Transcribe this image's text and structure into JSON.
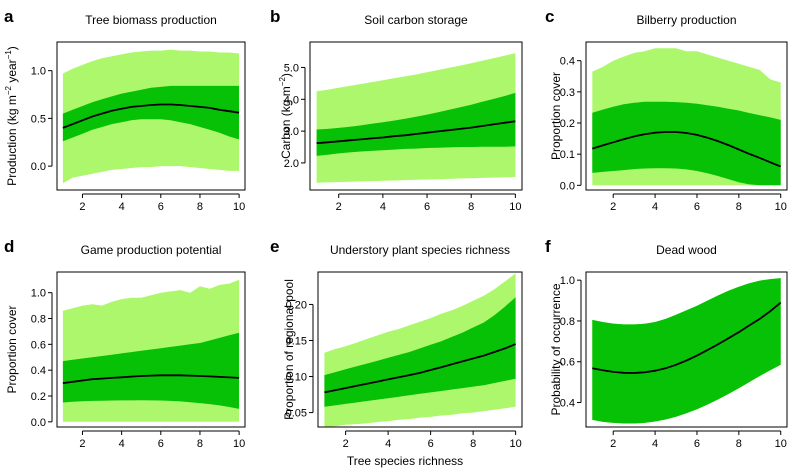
{
  "figure": {
    "shared_xlabel": "Tree species richness",
    "colors": {
      "outer_band": "#adf76c",
      "inner_band": "#06c106",
      "line": "#000000"
    }
  },
  "chart_data": [
    {
      "letter": "a",
      "type": "line",
      "title": "Tree biomass production",
      "ylabel": {
        "main": "Production (kg m",
        "sup1": "−2",
        "mid": " year",
        "sup2": "−1",
        "end": ")"
      },
      "xlim": [
        0.7,
        10.3
      ],
      "ylim": [
        -0.25,
        1.3
      ],
      "xticks": [
        2,
        4,
        6,
        8,
        10
      ],
      "yticks": [
        0.0,
        0.5,
        1.0
      ],
      "ytick_labels": [
        "0.0",
        "0.5",
        "1.0"
      ],
      "x": [
        1,
        1.5,
        2,
        2.5,
        3,
        3.5,
        4,
        4.5,
        5,
        5.5,
        6,
        6.5,
        7,
        7.5,
        8,
        8.5,
        9,
        9.5,
        10
      ],
      "mean": [
        0.4,
        0.44,
        0.48,
        0.52,
        0.55,
        0.58,
        0.6,
        0.62,
        0.63,
        0.64,
        0.645,
        0.645,
        0.64,
        0.63,
        0.62,
        0.61,
        0.59,
        0.575,
        0.56
      ],
      "inner_lower": [
        0.26,
        0.3,
        0.34,
        0.38,
        0.41,
        0.44,
        0.46,
        0.48,
        0.49,
        0.49,
        0.49,
        0.48,
        0.46,
        0.44,
        0.41,
        0.38,
        0.35,
        0.31,
        0.28
      ],
      "inner_upper": [
        0.55,
        0.59,
        0.63,
        0.67,
        0.7,
        0.73,
        0.76,
        0.78,
        0.8,
        0.82,
        0.83,
        0.84,
        0.84,
        0.84,
        0.84,
        0.84,
        0.84,
        0.84,
        0.84
      ],
      "outer_lower": [
        -0.18,
        -0.12,
        -0.1,
        -0.08,
        -0.06,
        -0.04,
        -0.03,
        -0.02,
        -0.01,
        -0.01,
        0.0,
        0.0,
        0.0,
        -0.01,
        -0.02,
        -0.03,
        -0.04,
        -0.05,
        -0.05
      ],
      "outer_upper": [
        0.97,
        1.02,
        1.06,
        1.1,
        1.13,
        1.15,
        1.17,
        1.19,
        1.2,
        1.21,
        1.21,
        1.22,
        1.21,
        1.21,
        1.2,
        1.2,
        1.19,
        1.19,
        1.18
      ]
    },
    {
      "letter": "b",
      "type": "line",
      "title": "Soil carbon storage",
      "ylabel": {
        "main": "Carbon (kg m",
        "sup1": "−2",
        "mid": "",
        "sup2": "",
        "end": ")"
      },
      "xlim": [
        0.7,
        10.3
      ],
      "ylim": [
        1.15,
        5.8
      ],
      "xticks": [
        2,
        4,
        6,
        8,
        10
      ],
      "yticks": [
        2.0,
        3.0,
        4.0,
        5.0
      ],
      "ytick_labels": [
        "2.0",
        "3.0",
        "4.0",
        "5.0"
      ],
      "x": [
        1,
        1.5,
        2,
        2.5,
        3,
        3.5,
        4,
        4.5,
        5,
        5.5,
        6,
        6.5,
        7,
        7.5,
        8,
        8.5,
        9,
        9.5,
        10
      ],
      "mean": [
        2.62,
        2.65,
        2.68,
        2.71,
        2.74,
        2.77,
        2.8,
        2.84,
        2.87,
        2.91,
        2.95,
        2.99,
        3.03,
        3.07,
        3.11,
        3.16,
        3.21,
        3.26,
        3.31
      ],
      "inner_lower": [
        2.22,
        2.26,
        2.3,
        2.33,
        2.36,
        2.38,
        2.4,
        2.42,
        2.44,
        2.45,
        2.47,
        2.48,
        2.49,
        2.5,
        2.5,
        2.51,
        2.51,
        2.51,
        2.52
      ],
      "inner_upper": [
        3.05,
        3.07,
        3.1,
        3.14,
        3.18,
        3.23,
        3.28,
        3.33,
        3.39,
        3.45,
        3.52,
        3.59,
        3.67,
        3.75,
        3.83,
        3.92,
        4.01,
        4.1,
        4.2
      ],
      "outer_lower": [
        1.38,
        1.39,
        1.4,
        1.41,
        1.42,
        1.43,
        1.44,
        1.45,
        1.46,
        1.47,
        1.48,
        1.49,
        1.5,
        1.51,
        1.52,
        1.53,
        1.54,
        1.55,
        1.56
      ],
      "outer_upper": [
        4.25,
        4.3,
        4.36,
        4.42,
        4.48,
        4.54,
        4.6,
        4.66,
        4.72,
        4.78,
        4.85,
        4.92,
        4.99,
        5.06,
        5.13,
        5.21,
        5.29,
        5.37,
        5.45
      ]
    },
    {
      "letter": "c",
      "type": "line",
      "title": "Bilberry production",
      "ylabel": {
        "main": "Proportion cover",
        "sup1": "",
        "mid": "",
        "sup2": "",
        "end": ""
      },
      "xlim": [
        0.7,
        10.3
      ],
      "ylim": [
        -0.015,
        0.46
      ],
      "xticks": [
        2,
        4,
        6,
        8,
        10
      ],
      "yticks": [
        0.0,
        0.1,
        0.2,
        0.3,
        0.4
      ],
      "ytick_labels": [
        "0.0",
        "0.1",
        "0.2",
        "0.3",
        "0.4"
      ],
      "x": [
        1,
        1.5,
        2,
        2.5,
        3,
        3.5,
        4,
        4.5,
        5,
        5.5,
        6,
        6.5,
        7,
        7.5,
        8,
        8.5,
        9,
        9.5,
        10
      ],
      "mean": [
        0.118,
        0.128,
        0.138,
        0.148,
        0.157,
        0.164,
        0.169,
        0.171,
        0.171,
        0.168,
        0.162,
        0.153,
        0.142,
        0.129,
        0.115,
        0.101,
        0.088,
        0.074,
        0.06
      ],
      "inner_lower": [
        0.04,
        0.043,
        0.046,
        0.049,
        0.052,
        0.054,
        0.055,
        0.055,
        0.054,
        0.051,
        0.046,
        0.039,
        0.03,
        0.02,
        0.01,
        0.003,
        0.0,
        0.0,
        0.0
      ],
      "inner_upper": [
        0.233,
        0.243,
        0.252,
        0.26,
        0.265,
        0.268,
        0.268,
        0.268,
        0.267,
        0.265,
        0.262,
        0.257,
        0.252,
        0.246,
        0.24,
        0.232,
        0.225,
        0.218,
        0.21
      ],
      "outer_lower": [
        0.0,
        0.0,
        0.0,
        0.0,
        0.0,
        0.0,
        0.0,
        0.0,
        0.0,
        0.0,
        0.0,
        0.0,
        0.0,
        0.0,
        0.0,
        0.0,
        0.0,
        0.0,
        0.0
      ],
      "outer_upper": [
        0.365,
        0.38,
        0.4,
        0.413,
        0.425,
        0.43,
        0.44,
        0.44,
        0.44,
        0.43,
        0.43,
        0.42,
        0.41,
        0.4,
        0.39,
        0.38,
        0.37,
        0.34,
        0.33
      ]
    },
    {
      "letter": "d",
      "type": "line",
      "title": "Game production potential",
      "ylabel": {
        "main": "Proportion cover",
        "sup1": "",
        "mid": "",
        "sup2": "",
        "end": ""
      },
      "xlim": [
        0.7,
        10.3
      ],
      "ylim": [
        -0.04,
        1.16
      ],
      "xticks": [
        2,
        4,
        6,
        8,
        10
      ],
      "yticks": [
        0.0,
        0.2,
        0.4,
        0.6,
        0.8,
        1.0
      ],
      "ytick_labels": [
        "0.0",
        "0.2",
        "0.4",
        "0.6",
        "0.8",
        "1.0"
      ],
      "x": [
        1,
        1.5,
        2,
        2.5,
        3,
        3.5,
        4,
        4.5,
        5,
        5.5,
        6,
        6.5,
        7,
        7.5,
        8,
        8.5,
        9,
        9.5,
        10
      ],
      "mean": [
        0.3,
        0.31,
        0.32,
        0.33,
        0.335,
        0.34,
        0.345,
        0.35,
        0.355,
        0.358,
        0.36,
        0.36,
        0.36,
        0.358,
        0.355,
        0.352,
        0.348,
        0.344,
        0.34
      ],
      "inner_lower": [
        0.15,
        0.155,
        0.16,
        0.162,
        0.163,
        0.165,
        0.166,
        0.166,
        0.167,
        0.166,
        0.165,
        0.162,
        0.158,
        0.152,
        0.145,
        0.137,
        0.127,
        0.115,
        0.1
      ],
      "inner_upper": [
        0.47,
        0.48,
        0.49,
        0.5,
        0.51,
        0.52,
        0.53,
        0.54,
        0.55,
        0.56,
        0.57,
        0.58,
        0.59,
        0.6,
        0.61,
        0.63,
        0.65,
        0.67,
        0.69
      ],
      "outer_lower": [
        0.0,
        0.0,
        0.0,
        0.0,
        0.0,
        0.0,
        0.0,
        0.0,
        0.0,
        0.0,
        0.0,
        0.0,
        0.0,
        0.0,
        0.0,
        0.0,
        0.0,
        0.0,
        0.0
      ],
      "outer_upper": [
        0.86,
        0.88,
        0.9,
        0.91,
        0.9,
        0.93,
        0.95,
        0.96,
        0.96,
        0.98,
        1.0,
        1.01,
        1.02,
        1.0,
        1.05,
        1.03,
        1.06,
        1.07,
        1.1
      ]
    },
    {
      "letter": "e",
      "type": "line",
      "title": "Understory plant species richness",
      "ylabel": {
        "main": "Proportion of regional pool",
        "sup1": "",
        "mid": "",
        "sup2": "",
        "end": ""
      },
      "xlim": [
        0.7,
        10.3
      ],
      "ylim": [
        0.03,
        0.245
      ],
      "xticks": [
        2,
        4,
        6,
        8,
        10
      ],
      "yticks": [
        0.05,
        0.1,
        0.15,
        0.2
      ],
      "ytick_labels": [
        "0.05",
        "0.10",
        "0.15",
        "0.20"
      ],
      "x": [
        1,
        1.5,
        2,
        2.5,
        3,
        3.5,
        4,
        4.5,
        5,
        5.5,
        6,
        6.5,
        7,
        7.5,
        8,
        8.5,
        9,
        9.5,
        10
      ],
      "mean": [
        0.078,
        0.081,
        0.084,
        0.087,
        0.09,
        0.093,
        0.096,
        0.099,
        0.102,
        0.105,
        0.109,
        0.113,
        0.117,
        0.121,
        0.125,
        0.129,
        0.134,
        0.139,
        0.145
      ],
      "inner_lower": [
        0.058,
        0.06,
        0.062,
        0.064,
        0.066,
        0.068,
        0.07,
        0.072,
        0.074,
        0.076,
        0.078,
        0.08,
        0.082,
        0.084,
        0.086,
        0.088,
        0.091,
        0.094,
        0.097
      ],
      "inner_upper": [
        0.102,
        0.106,
        0.11,
        0.114,
        0.118,
        0.122,
        0.126,
        0.13,
        0.134,
        0.139,
        0.144,
        0.149,
        0.155,
        0.161,
        0.168,
        0.175,
        0.185,
        0.197,
        0.21
      ],
      "outer_lower": [
        0.03,
        0.031,
        0.033,
        0.034,
        0.035,
        0.037,
        0.038,
        0.04,
        0.041,
        0.043,
        0.044,
        0.046,
        0.047,
        0.049,
        0.05,
        0.052,
        0.054,
        0.056,
        0.058
      ],
      "outer_upper": [
        0.133,
        0.138,
        0.142,
        0.147,
        0.152,
        0.157,
        0.162,
        0.166,
        0.171,
        0.176,
        0.181,
        0.187,
        0.192,
        0.198,
        0.205,
        0.212,
        0.221,
        0.232,
        0.243
      ]
    },
    {
      "letter": "f",
      "type": "line",
      "title": "Dead wood",
      "ylabel": {
        "main": "Probability of occurrence",
        "sup1": "",
        "mid": "",
        "sup2": "",
        "end": ""
      },
      "xlim": [
        0.7,
        10.3
      ],
      "ylim": [
        0.28,
        1.04
      ],
      "xticks": [
        2,
        4,
        6,
        8,
        10
      ],
      "yticks": [
        0.4,
        0.6,
        0.8,
        1.0
      ],
      "ytick_labels": [
        "0.4",
        "0.6",
        "0.8",
        "1.0"
      ],
      "x": [
        1,
        1.5,
        2,
        2.5,
        3,
        3.5,
        4,
        4.5,
        5,
        5.5,
        6,
        6.5,
        7,
        7.5,
        8,
        8.5,
        9,
        9.5,
        10
      ],
      "mean": [
        0.568,
        0.558,
        0.55,
        0.546,
        0.545,
        0.548,
        0.556,
        0.568,
        0.585,
        0.606,
        0.63,
        0.657,
        0.685,
        0.715,
        0.745,
        0.778,
        0.81,
        0.848,
        0.89
      ],
      "inner_lower": [
        0.315,
        0.305,
        0.3,
        0.297,
        0.297,
        0.3,
        0.307,
        0.317,
        0.33,
        0.347,
        0.367,
        0.39,
        0.415,
        0.442,
        0.47,
        0.5,
        0.53,
        0.558,
        0.585
      ],
      "inner_upper": [
        0.805,
        0.795,
        0.787,
        0.783,
        0.783,
        0.786,
        0.795,
        0.81,
        0.83,
        0.852,
        0.875,
        0.9,
        0.925,
        0.948,
        0.968,
        0.985,
        0.998,
        1.005,
        1.01
      ],
      "outer_lower": [
        0.315,
        0.305,
        0.3,
        0.297,
        0.297,
        0.3,
        0.307,
        0.317,
        0.33,
        0.347,
        0.367,
        0.39,
        0.415,
        0.442,
        0.47,
        0.5,
        0.53,
        0.558,
        0.585
      ],
      "outer_upper": [
        0.805,
        0.795,
        0.787,
        0.783,
        0.783,
        0.786,
        0.795,
        0.81,
        0.83,
        0.852,
        0.875,
        0.9,
        0.925,
        0.948,
        0.968,
        0.985,
        0.998,
        1.005,
        1.01
      ]
    }
  ]
}
